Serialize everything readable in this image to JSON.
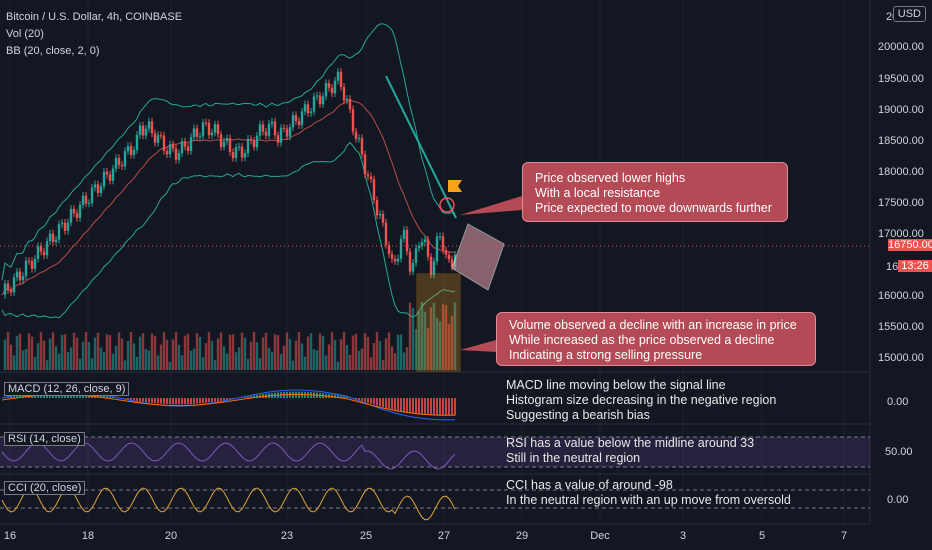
{
  "header": {
    "symbol": "Bitcoin / U.S. Dollar, 4h, COINBASE",
    "vol": "Vol (20)",
    "bb": "BB (20, close, 2, 0)"
  },
  "currency_button": "USD",
  "price_axis": {
    "labels": [
      "20000.00",
      "19500.00",
      "19000.00",
      "18500.00",
      "18000.00",
      "17500.00",
      "17000.00",
      "16000.00",
      "15500.00",
      "15000.00"
    ],
    "top_partial": "20",
    "current_price": "16750.00",
    "partial_price": "16",
    "countdown": "13:26",
    "macd_zero": "0.00",
    "rsi_value": "50.00",
    "cci_zero": "0.00"
  },
  "date_axis": [
    "16",
    "18",
    "20",
    "23",
    "25",
    "27",
    "29",
    "Dec",
    "3",
    "5",
    "7"
  ],
  "indicators": {
    "macd": "MACD (12, 26, close, 9)",
    "rsi": "RSI (14, close)",
    "cci": "CCI (20, close)"
  },
  "callouts": {
    "price": [
      "Price observed lower highs",
      "With a local resistance",
      "Price expected to move downwards further"
    ],
    "volume": [
      "Volume observed a decline with an increase in price",
      "While increased as the price observed a decline",
      "Indicating a strong selling pressure"
    ]
  },
  "notes": {
    "macd": [
      "MACD line moving below the signal line",
      "Histogram size decreasing in the negative region",
      "Suggesting a bearish bias"
    ],
    "rsi": [
      "RSI has a value below the midline around 33",
      "Still in the neutral region"
    ],
    "cci": [
      "CCI has a value of around -98",
      "In the neutral region with an up move from oversold"
    ]
  },
  "colors": {
    "background": "#131722",
    "bull": "#26a69a",
    "bear": "#ef5350",
    "bollinger": "#26a69a",
    "callout": "#b34a55",
    "rsi_band": "#7e57c2",
    "cci_line": "#e0a23a"
  }
}
